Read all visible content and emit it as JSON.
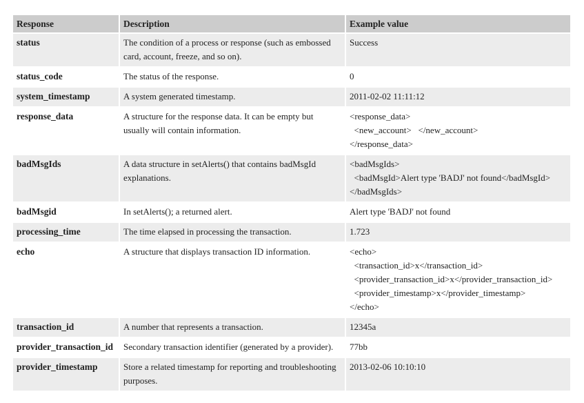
{
  "table": {
    "headers": [
      "Response",
      "Description",
      "Example value"
    ],
    "rows": [
      {
        "name": "status",
        "description": "The condition of a process or response (such as embossed card, account, freeze, and so on).",
        "example": [
          "Success"
        ]
      },
      {
        "name": "status_code",
        "description": "The status of the response.",
        "example": [
          "0"
        ]
      },
      {
        "name": "system_timestamp",
        "description": "A system generated timestamp.",
        "example": [
          "2011-02-02 11:11:12"
        ]
      },
      {
        "name": "response_data",
        "description": "A structure for the response data. It can be empty but usually will contain information.",
        "example": [
          "<response_data>",
          "  <new_account>   </new_account>",
          "</response_data>"
        ]
      },
      {
        "name": "badMsgIds",
        "description": "A data structure in setAlerts() that contains badMsgId explanations.",
        "example": [
          "<badMsgIds>",
          "  <badMsgId>Alert type 'BADJ' not found</badMsgId>",
          "</badMsgIds>"
        ]
      },
      {
        "name": "badMsgid",
        "description": "In setAlerts(); a returned alert.",
        "example": [
          "Alert type 'BADJ' not found"
        ]
      },
      {
        "name": "processing_time",
        "description": "The time elapsed in processing the transaction.",
        "example": [
          "1.723"
        ]
      },
      {
        "name": "echo",
        "description": "A structure that displays transaction ID information.",
        "example": [
          "<echo>",
          "  <transaction_id>x</transaction_id>",
          "  <provider_transaction_id>x</provider_transaction_id>",
          "  <provider_timestamp>x</provider_timestamp>",
          "</echo>"
        ]
      },
      {
        "name": "transaction_id",
        "description": "A number that represents a transaction.",
        "example": [
          "12345a"
        ]
      },
      {
        "name": "provider_transaction_id",
        "description": "Secondary transaction identifier (generated by a provider).",
        "example": [
          "77bb"
        ]
      },
      {
        "name": "provider_timestamp",
        "description": "Store a related timestamp for reporting and troubleshooting purposes.",
        "example": [
          "2013-02-06 10:10:10"
        ]
      }
    ]
  }
}
